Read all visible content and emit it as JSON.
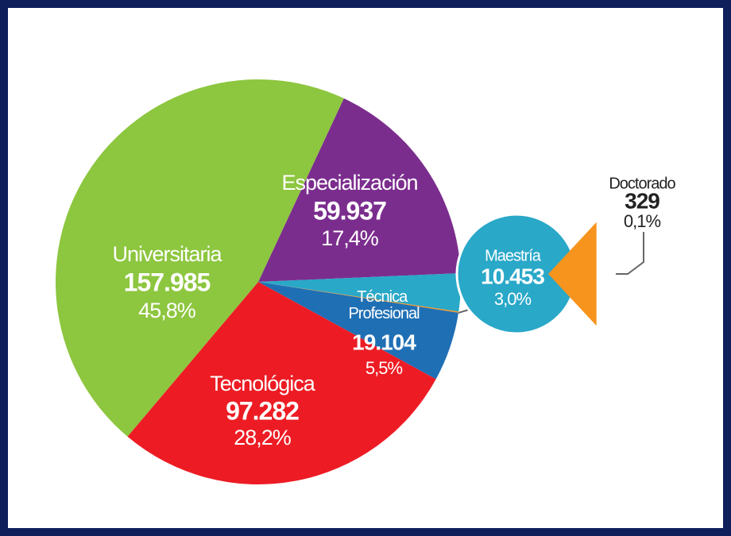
{
  "chart_data": {
    "type": "pie",
    "categories": [
      "Especialización",
      "Maestría",
      "Doctorado",
      "Técnica Profesional",
      "Tecnológica",
      "Universitaria"
    ],
    "values": [
      59937,
      10453,
      329,
      19104,
      97282,
      157985
    ],
    "value_labels": [
      "59.937",
      "10.453",
      "329",
      "19.104",
      "97.282",
      "157.985"
    ],
    "percentages": [
      17.4,
      3.0,
      0.1,
      5.5,
      28.2,
      45.8
    ],
    "percentage_labels": [
      "17,4%",
      "3,0%",
      "0,1%",
      "5,5%",
      "28,2%",
      "45,8%"
    ],
    "colors": [
      "#7b2d8e",
      "#29a8c8",
      "#f7941d",
      "#1f6fb5",
      "#ed1c24",
      "#8dc63f"
    ]
  }
}
